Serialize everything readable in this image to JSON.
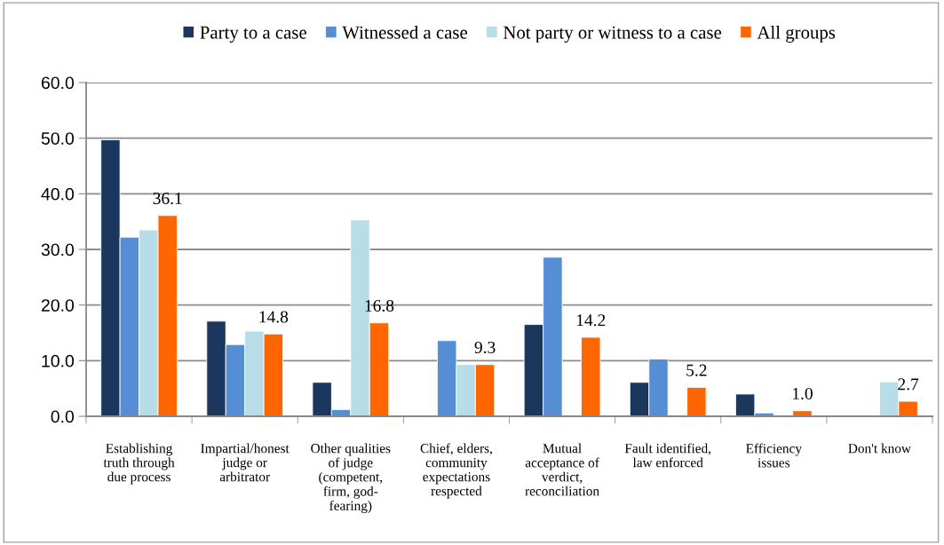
{
  "chart_data": {
    "type": "bar",
    "categories": [
      "Establishing\ntruth through\ndue process",
      "Impartial/honest\njudge or\narbitrator",
      "Other qualities\nof judge\n(competent,\nfirm, god-\nfearing)",
      "Chief, elders,\ncommunity\nexpectations\nrespected",
      "Mutual\nacceptance of\nverdict,\nreconciliation",
      "Fault identified,\nlaw enforced",
      "Efficiency\nissues",
      "Don't know"
    ],
    "series": [
      {
        "name": "Party to a case",
        "color": "#1b375e",
        "values": [
          49.7,
          17.1,
          6.1,
          null,
          16.5,
          6.1,
          4.0,
          null
        ]
      },
      {
        "name": "Witnessed a case",
        "color": "#558ed5",
        "values": [
          32.2,
          12.9,
          1.2,
          13.6,
          28.6,
          10.3,
          0.6,
          null
        ]
      },
      {
        "name": "Not party or witness to a case",
        "color": "#b7dde8",
        "values": [
          33.5,
          15.3,
          35.3,
          9.3,
          null,
          null,
          null,
          6.2
        ]
      },
      {
        "name": "All groups",
        "color": "#ff6600",
        "values": [
          36.1,
          14.8,
          16.8,
          9.3,
          14.2,
          5.2,
          1.0,
          2.7
        ],
        "value_labels": [
          "36.1",
          "14.8",
          "16.8",
          "9.3",
          "14.2",
          "5.2",
          "1.0",
          "2.7"
        ]
      }
    ],
    "ylim": [
      0,
      60
    ],
    "yticks": [
      {
        "value": 0,
        "label": "0.0"
      },
      {
        "value": 10,
        "label": "10.0"
      },
      {
        "value": 20,
        "label": "20.0"
      },
      {
        "value": 30,
        "label": "30.0"
      },
      {
        "value": 40,
        "label": "40.0"
      },
      {
        "value": 50,
        "label": "50.0"
      },
      {
        "value": 60,
        "label": "60.0"
      }
    ],
    "grid": "y",
    "legend": "top"
  }
}
